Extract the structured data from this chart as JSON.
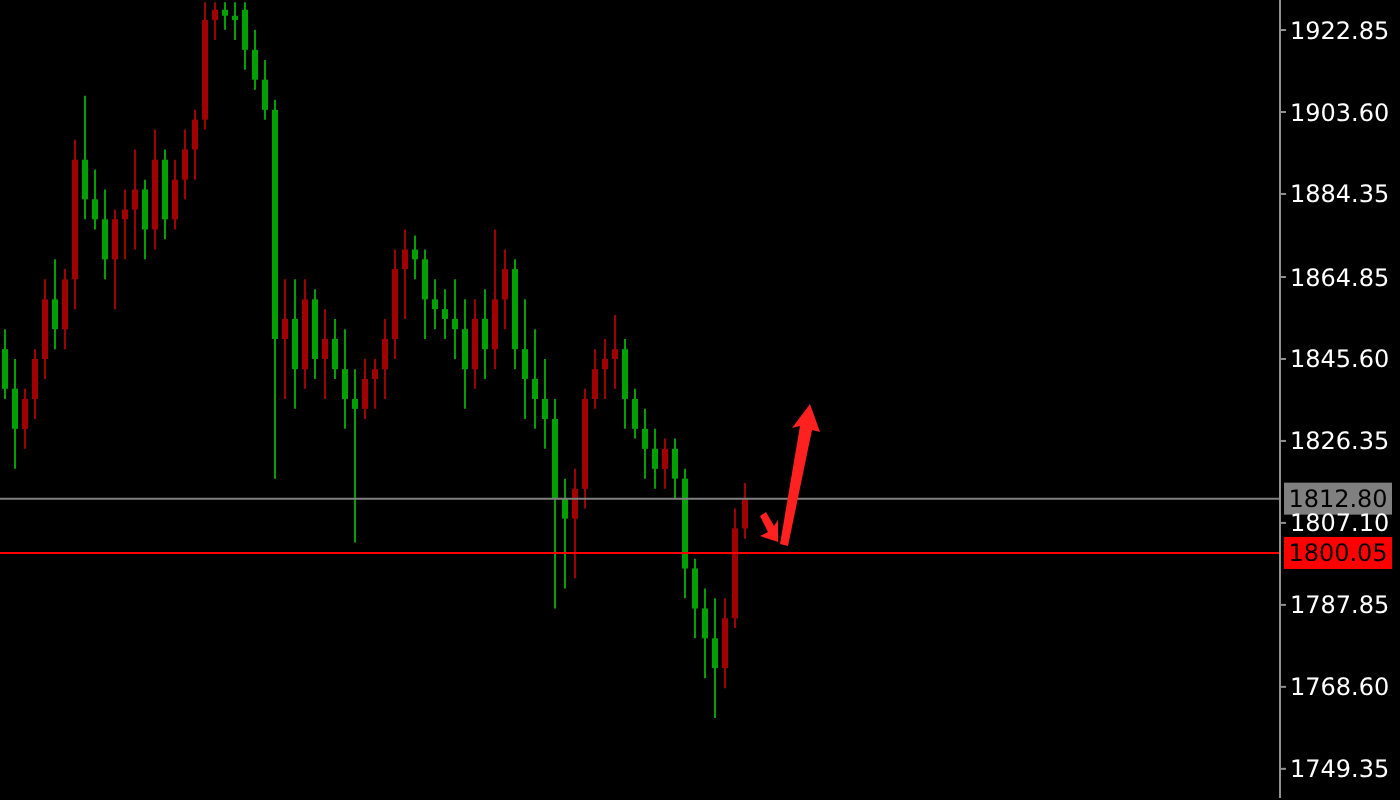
{
  "chart_data": {
    "type": "candlestick",
    "categories": [
      null,
      null,
      null,
      null,
      null,
      null,
      null,
      null,
      null,
      null,
      null,
      null,
      null,
      null,
      null,
      null,
      null,
      null,
      null,
      null,
      null,
      null,
      null,
      null,
      null,
      null,
      null,
      null,
      null,
      null,
      null,
      null,
      null,
      null,
      null,
      null,
      null,
      null,
      null,
      null,
      null,
      null,
      null,
      null,
      null,
      null,
      null,
      null,
      null,
      null,
      null,
      null,
      null,
      null,
      null,
      null,
      null,
      null,
      null,
      null,
      null,
      null,
      null,
      null,
      null,
      null,
      null,
      null,
      null,
      null,
      null,
      null,
      null,
      null,
      null,
      null,
      null,
      null,
      null,
      null,
      null,
      null,
      null,
      null,
      null,
      null,
      null,
      null,
      null,
      null,
      null,
      null,
      null,
      null,
      null,
      null,
      null,
      null,
      null,
      null,
      null,
      null,
      null,
      null,
      null,
      null,
      null,
      null,
      null,
      null,
      null,
      null,
      null,
      null,
      null,
      null,
      null,
      null,
      null,
      null,
      null,
      null,
      null,
      null,
      null,
      null,
      null,
      null
    ],
    "ohlc": [
      [
        1847.9,
        1852.6,
        1836.2,
        1838.6
      ],
      [
        1838.6,
        1845.6,
        1819.8,
        1829.2
      ],
      [
        1829.2,
        1838.6,
        1824.5,
        1836.2
      ],
      [
        1836.2,
        1847.9,
        1831.5,
        1845.6
      ],
      [
        1845.6,
        1864.3,
        1840.9,
        1859.6
      ],
      [
        1859.6,
        1869.0,
        1847.9,
        1852.6
      ],
      [
        1852.6,
        1866.7,
        1847.9,
        1864.3
      ],
      [
        1864.3,
        1897.1,
        1857.3,
        1892.4
      ],
      [
        1892.4,
        1907.4,
        1878.4,
        1883.1
      ],
      [
        1883.1,
        1890.1,
        1876.0,
        1878.4
      ],
      [
        1878.4,
        1885.4,
        1864.3,
        1869.0
      ],
      [
        1869.0,
        1880.7,
        1857.3,
        1878.4
      ],
      [
        1878.4,
        1885.4,
        1869.0,
        1880.7
      ],
      [
        1880.7,
        1894.8,
        1871.3,
        1885.4
      ],
      [
        1885.4,
        1887.7,
        1869.0,
        1876.0
      ],
      [
        1876.0,
        1899.5,
        1871.3,
        1892.4
      ],
      [
        1892.4,
        1894.8,
        1873.7,
        1878.4
      ],
      [
        1878.4,
        1892.4,
        1876.0,
        1887.7
      ],
      [
        1887.7,
        1899.5,
        1883.1,
        1894.8
      ],
      [
        1894.8,
        1904.1,
        1887.7,
        1901.8
      ],
      [
        1901.8,
        1929.4,
        1899.5,
        1925.2
      ],
      [
        1925.2,
        1929.4,
        1920.5,
        1927.6
      ],
      [
        1927.6,
        1929.4,
        1922.9,
        1926.2
      ],
      [
        1926.2,
        1929.4,
        1920.5,
        1925.2
      ],
      [
        1927.6,
        1929.4,
        1913.5,
        1918.2
      ],
      [
        1918.2,
        1922.9,
        1908.8,
        1911.2
      ],
      [
        1911.2,
        1915.8,
        1901.8,
        1904.1
      ],
      [
        1904.1,
        1906.5,
        1817.5,
        1850.3
      ],
      [
        1850.3,
        1864.3,
        1836.2,
        1855.0
      ],
      [
        1855.0,
        1864.3,
        1833.9,
        1843.2
      ],
      [
        1843.2,
        1864.3,
        1838.6,
        1859.6
      ],
      [
        1859.6,
        1862.0,
        1840.9,
        1845.6
      ],
      [
        1845.6,
        1857.3,
        1836.2,
        1850.3
      ],
      [
        1850.3,
        1855.0,
        1840.9,
        1843.2
      ],
      [
        1843.2,
        1852.6,
        1829.2,
        1836.2
      ],
      [
        1836.2,
        1843.2,
        1802.5,
        1833.9
      ],
      [
        1833.9,
        1845.6,
        1831.5,
        1840.9
      ],
      [
        1840.9,
        1845.6,
        1833.9,
        1843.2
      ],
      [
        1843.2,
        1855.0,
        1836.2,
        1850.3
      ],
      [
        1850.3,
        1871.3,
        1845.6,
        1866.7
      ],
      [
        1866.7,
        1876.0,
        1855.0,
        1871.3
      ],
      [
        1871.3,
        1874.6,
        1864.3,
        1869.0
      ],
      [
        1869.0,
        1871.3,
        1850.3,
        1859.6
      ],
      [
        1859.6,
        1864.3,
        1852.6,
        1857.3
      ],
      [
        1857.3,
        1862.0,
        1850.3,
        1855.0
      ],
      [
        1855.0,
        1864.3,
        1845.6,
        1852.6
      ],
      [
        1852.6,
        1859.6,
        1833.9,
        1843.2
      ],
      [
        1843.2,
        1859.6,
        1838.6,
        1855.0
      ],
      [
        1855.0,
        1862.0,
        1840.9,
        1847.9
      ],
      [
        1847.9,
        1876.0,
        1843.2,
        1859.6
      ],
      [
        1859.6,
        1871.3,
        1852.6,
        1866.7
      ],
      [
        1866.7,
        1869.0,
        1843.2,
        1847.9
      ],
      [
        1847.9,
        1859.6,
        1831.5,
        1840.9
      ],
      [
        1840.9,
        1852.6,
        1829.2,
        1836.2
      ],
      [
        1836.2,
        1845.6,
        1824.5,
        1831.5
      ],
      [
        1831.5,
        1836.2,
        1787.0,
        1812.8
      ],
      [
        1812.8,
        1817.5,
        1791.7,
        1808.1
      ],
      [
        1808.1,
        1819.8,
        1794.1,
        1815.1
      ],
      [
        1815.1,
        1838.6,
        1810.5,
        1836.2
      ],
      [
        1836.2,
        1847.9,
        1833.9,
        1843.2
      ],
      [
        1843.2,
        1850.3,
        1836.2,
        1845.6
      ],
      [
        1845.6,
        1855.9,
        1838.6,
        1847.9
      ],
      [
        1847.9,
        1850.3,
        1829.2,
        1836.2
      ],
      [
        1836.2,
        1838.6,
        1826.9,
        1829.2
      ],
      [
        1829.2,
        1833.9,
        1817.5,
        1824.5
      ],
      [
        1824.5,
        1829.2,
        1815.1,
        1819.8
      ],
      [
        1819.8,
        1826.9,
        1815.1,
        1824.5
      ],
      [
        1824.5,
        1826.9,
        1812.8,
        1817.5
      ],
      [
        1817.5,
        1819.8,
        1789.4,
        1796.4
      ],
      [
        1796.4,
        1798.7,
        1780.0,
        1787.0
      ],
      [
        1787.0,
        1791.7,
        1770.6,
        1780.0
      ],
      [
        1780.0,
        1789.4,
        1761.3,
        1773.0
      ],
      [
        1773.0,
        1789.4,
        1768.3,
        1784.7
      ],
      [
        1784.7,
        1810.5,
        1782.4,
        1805.8
      ],
      [
        1805.8,
        1816.5,
        1803.4,
        1812.8
      ],
      null,
      null,
      null,
      null,
      null,
      null,
      null,
      null,
      null,
      null,
      null,
      null,
      null,
      null,
      null,
      null,
      null,
      null,
      null,
      null,
      null,
      null,
      null,
      null,
      null,
      null,
      null,
      null,
      null,
      null,
      null,
      null,
      null,
      null,
      null,
      null,
      null,
      null,
      null,
      null,
      null,
      null,
      null,
      null,
      null,
      null,
      null,
      null,
      null,
      null,
      null,
      null,
      null
    ],
    "colors": [
      "#00a000",
      "#00a000",
      "#a00000",
      "#a00000",
      "#a00000",
      "#00a000",
      "#a00000",
      "#a00000",
      "#00a000",
      "#00a000",
      "#00a000",
      "#a00000",
      "#a00000",
      "#a00000",
      "#00a000",
      "#a00000",
      "#00a000",
      "#a00000",
      "#a00000",
      "#a00000",
      "#a00000",
      "#a00000",
      "#00a000",
      "#00a000",
      "#00a000",
      "#00a000",
      "#00a000",
      "#00a000",
      "#a00000",
      "#00a000",
      "#a00000",
      "#00a000",
      "#a00000",
      "#00a000",
      "#00a000",
      "#00a000",
      "#a00000",
      "#a00000",
      "#a00000",
      "#a00000",
      "#a00000",
      "#00a000",
      "#00a000",
      "#00a000",
      "#00a000",
      "#00a000",
      "#00a000",
      "#a00000",
      "#00a000",
      "#a00000",
      "#a00000",
      "#00a000",
      "#00a000",
      "#00a000",
      "#00a000",
      "#00a000",
      "#00a000",
      "#a00000",
      "#a00000",
      "#a00000",
      "#a00000",
      "#a00000",
      "#00a000",
      "#00a000",
      "#00a000",
      "#00a000",
      "#a00000",
      "#00a000",
      "#00a000",
      "#00a000",
      "#00a000",
      "#00a000",
      "#a00000",
      "#a00000",
      "#a00000",
      null,
      null,
      null,
      null,
      null,
      null,
      null,
      null,
      null,
      null,
      null,
      null,
      null,
      null,
      null,
      null,
      null,
      null,
      null,
      null,
      null,
      null,
      null,
      null,
      null,
      null,
      null,
      null,
      null,
      null,
      null,
      null,
      null,
      null,
      null,
      null,
      null,
      null,
      null,
      null,
      null,
      null,
      null,
      null,
      null,
      null,
      null,
      null,
      null,
      null,
      null,
      null,
      null
    ],
    "ylim": [
      1742.5,
      1929.9
    ],
    "yticks": [
      {
        "value": 1922.85,
        "label": "1922.85"
      },
      {
        "value": 1903.6,
        "label": "1903.60"
      },
      {
        "value": 1884.35,
        "label": "1884.35"
      },
      {
        "value": 1864.85,
        "label": "1864.85"
      },
      {
        "value": 1845.6,
        "label": "1845.60"
      },
      {
        "value": 1826.35,
        "label": "1826.35"
      },
      {
        "value": 1807.1,
        "label": "1807.10"
      },
      {
        "value": 1787.85,
        "label": "1787.85"
      },
      {
        "value": 1768.6,
        "label": "1768.60"
      },
      {
        "value": 1749.35,
        "label": "1749.35"
      }
    ],
    "ref_lines": [
      {
        "axis": "y",
        "value": 1812.8,
        "label": "1812.80",
        "color": "#808080"
      },
      {
        "axis": "y",
        "value": 1800.05,
        "label": "1800.05",
        "color": "#ff0000"
      }
    ],
    "tick_labels": "y"
  }
}
